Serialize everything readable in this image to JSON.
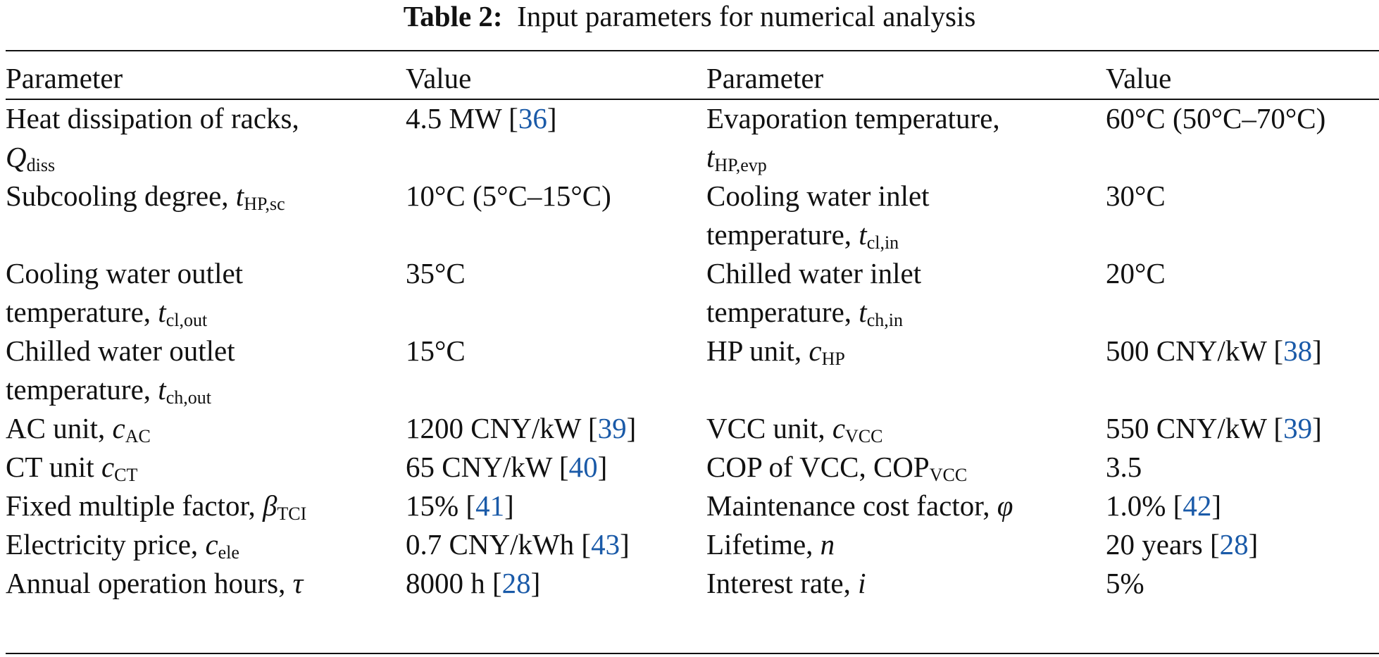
{
  "caption": {
    "label": "Table 2:",
    "text": "Input parameters for numerical analysis"
  },
  "headers": {
    "param1": "Parameter",
    "value1": "Value",
    "param2": "Parameter",
    "value2": "Value"
  },
  "rows": [
    {
      "p1_line1": "Heat dissipation of racks,",
      "p1_sym": "Q",
      "p1_sub": "diss",
      "v1_text": "4.5 MW [",
      "v1_ref": "36",
      "v1_close": "]",
      "p2_line1": "Evaporation temperature,",
      "p2_sym": "t",
      "p2_sub": "HP,evp",
      "v2_text": "60°C (50°C–70°C)"
    },
    {
      "p1_text": "Subcooling degree, ",
      "p1_sym": "t",
      "p1_sub": "HP,sc",
      "v1_text": "10°C (5°C–15°C)",
      "p2_line1": "Cooling water inlet",
      "p2_line2": "temperature, ",
      "p2_sym": "t",
      "p2_sub": "cl,in",
      "v2_text": "30°C"
    },
    {
      "p1_line1": "Cooling water outlet",
      "p1_line2": "temperature, ",
      "p1_sym": "t",
      "p1_sub": "cl,out",
      "v1_text": "35°C",
      "p2_line1": "Chilled water inlet",
      "p2_line2": "temperature, ",
      "p2_sym": "t",
      "p2_sub": "ch,in",
      "v2_text": "20°C"
    },
    {
      "p1_line1": "Chilled water outlet",
      "p1_line2": "temperature, ",
      "p1_sym": "t",
      "p1_sub": "ch,out",
      "v1_text": "15°C",
      "p2_text": "HP unit, ",
      "p2_sym": "c",
      "p2_sub": "HP",
      "v2_text": "500 CNY/kW [",
      "v2_ref": "38",
      "v2_close": "]"
    },
    {
      "p1_text": "AC unit, ",
      "p1_sym": "c",
      "p1_sub": "AC",
      "v1_text": "1200 CNY/kW [",
      "v1_ref": "39",
      "v1_close": "]",
      "p2_text": "VCC unit, ",
      "p2_sym": "c",
      "p2_sub": "VCC",
      "v2_text": "550 CNY/kW [",
      "v2_ref": "39",
      "v2_close": "]"
    },
    {
      "p1_text": "CT unit ",
      "p1_sym": "c",
      "p1_sub": "CT",
      "v1_text": "65 CNY/kW [",
      "v1_ref": "40",
      "v1_close": "]",
      "p2_text": "COP of VCC, COP",
      "p2_sub": "VCC",
      "v2_text": "3.5"
    },
    {
      "p1_text": "Fixed multiple factor, ",
      "p1_sym": "β",
      "p1_sub": "TCI",
      "v1_text": "15% [",
      "v1_ref": "41",
      "v1_close": "]",
      "p2_text": "Maintenance cost factor, ",
      "p2_sym": "φ",
      "v2_text": "1.0% [",
      "v2_ref": "42",
      "v2_close": "]"
    },
    {
      "p1_text": "Electricity price, ",
      "p1_sym": "c",
      "p1_sub": "ele",
      "v1_text": "0.7 CNY/kWh [",
      "v1_ref": "43",
      "v1_close": "]",
      "p2_text": "Lifetime, ",
      "p2_sym": "n",
      "v2_text": "20 years [",
      "v2_ref": "28",
      "v2_close": "]"
    },
    {
      "p1_text": "Annual operation hours, ",
      "p1_sym": "τ",
      "v1_text": "8000 h [",
      "v1_ref": "28",
      "v1_close": "]",
      "p2_text": "Interest rate, ",
      "p2_sym": "i",
      "v2_text": "5%"
    }
  ],
  "colors": {
    "text": "#111111",
    "reference_link": "#1a5aa8"
  }
}
